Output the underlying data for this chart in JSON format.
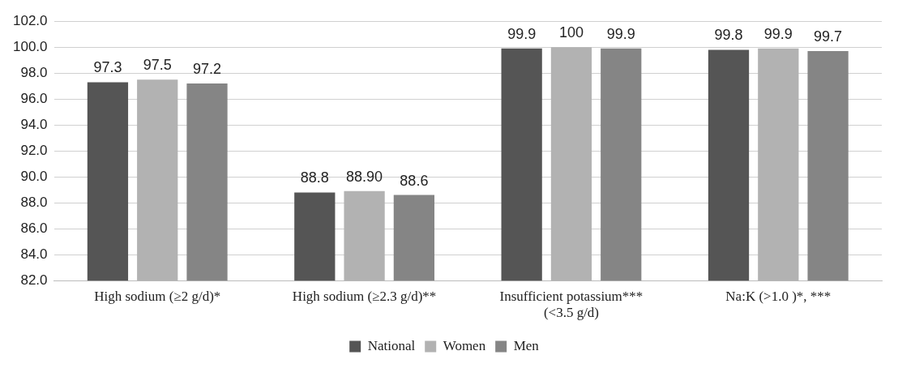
{
  "chart_data": {
    "type": "bar",
    "categories": [
      "High sodium (≥2 g/d)*",
      "High sodium (≥2.3 g/d)**",
      "Insufficient potassium*** (<3.5 g/d)",
      "Na:K (>1.0 )*, ***"
    ],
    "series": [
      {
        "name": "National",
        "color": "#555555",
        "values": [
          97.3,
          88.8,
          99.9,
          99.8
        ],
        "value_labels": [
          "97.3",
          "88.8",
          "99.9",
          "99.8"
        ]
      },
      {
        "name": "Women",
        "color": "#b2b2b2",
        "values": [
          97.5,
          88.9,
          100,
          99.9
        ],
        "value_labels": [
          "97.5",
          "88.90",
          "100",
          "99.9"
        ]
      },
      {
        "name": "Men",
        "color": "#858585",
        "values": [
          97.2,
          88.6,
          99.9,
          99.7
        ],
        "value_labels": [
          "97.2",
          "88.6",
          "99.9",
          "99.7"
        ]
      }
    ],
    "ylim": [
      82,
      102
    ],
    "yticks": [
      {
        "value": 82,
        "label": "82.0"
      },
      {
        "value": 84,
        "label": "84.0"
      },
      {
        "value": 86,
        "label": "86.0"
      },
      {
        "value": 88,
        "label": "88.0"
      },
      {
        "value": 90,
        "label": "90.0"
      },
      {
        "value": 92,
        "label": "92.0"
      },
      {
        "value": 94,
        "label": "94.0"
      },
      {
        "value": 96,
        "label": "96.0"
      },
      {
        "value": 98,
        "label": "98.0"
      },
      {
        "value": 100,
        "label": "100.0"
      },
      {
        "value": 102,
        "label": "102.0"
      }
    ],
    "grid": "y",
    "legend": "bottom"
  }
}
